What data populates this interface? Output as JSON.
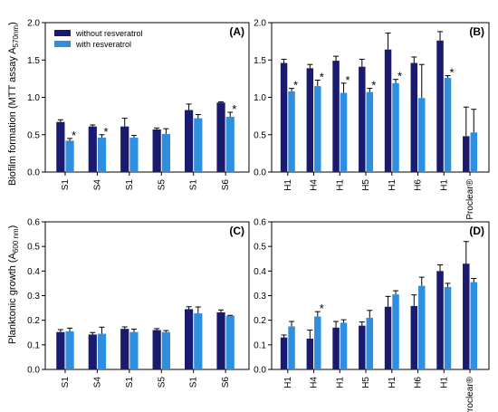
{
  "colors": {
    "without": "#1a1a6e",
    "with": "#2e8fe0",
    "axis": "#000000"
  },
  "legend": {
    "without": "without resveratrol",
    "with": "with resveratrol"
  },
  "ylabels": {
    "top_prefix": "Biofilm formation (MTT assay A",
    "top_sub": "570nm",
    "bottom_prefix": "Planktonic growth (A",
    "bottom_sub": "600 nm"
  },
  "chart_data": [
    {
      "type": "bar",
      "panel": "A",
      "categories": [
        "S1",
        "S4",
        "S1",
        "S5",
        "S1",
        "S6"
      ],
      "ylim": [
        0,
        2.0
      ],
      "yticks": [
        "0.0",
        "0.5",
        "1.0",
        "1.5",
        "2.0"
      ],
      "legend_position": "top-left",
      "series": [
        {
          "name": "without resveratrol",
          "values": [
            0.67,
            0.61,
            0.61,
            0.57,
            0.83,
            0.93
          ],
          "errors": [
            0.03,
            0.02,
            0.11,
            0.02,
            0.08,
            0.01
          ]
        },
        {
          "name": "with resveratrol",
          "values": [
            0.42,
            0.46,
            0.46,
            0.51,
            0.72,
            0.74
          ],
          "errors": [
            0.03,
            0.04,
            0.03,
            0.07,
            0.05,
            0.06
          ]
        }
      ],
      "stars": [
        1,
        1,
        0,
        0,
        0,
        1
      ]
    },
    {
      "type": "bar",
      "panel": "B",
      "categories": [
        "H1",
        "H4",
        "H1",
        "H5",
        "H1",
        "H6",
        "H1",
        "Proclear®"
      ],
      "ylim": [
        0,
        2.0
      ],
      "yticks": [
        "0.0",
        "0.5",
        "1.0",
        "1.5",
        "2.0"
      ],
      "series": [
        {
          "name": "without resveratrol",
          "values": [
            1.46,
            1.39,
            1.49,
            1.41,
            1.64,
            1.46,
            1.76,
            0.48
          ],
          "errors": [
            0.05,
            0.05,
            0.06,
            0.1,
            0.22,
            0.08,
            0.12,
            0.39
          ]
        },
        {
          "name": "with resveratrol",
          "values": [
            1.08,
            1.15,
            1.06,
            1.07,
            1.19,
            0.99,
            1.26,
            0.53
          ],
          "errors": [
            0.04,
            0.08,
            0.13,
            0.05,
            0.05,
            0.45,
            0.03,
            0.31
          ]
        }
      ],
      "stars": [
        1,
        1,
        1,
        1,
        1,
        0,
        1,
        0
      ]
    },
    {
      "type": "bar",
      "panel": "C",
      "categories": [
        "S1",
        "S4",
        "S1",
        "S5",
        "S1",
        "S6"
      ],
      "ylim": [
        0,
        0.6
      ],
      "yticks": [
        "0.0",
        "0.1",
        "0.2",
        "0.3",
        "0.4",
        "0.5",
        "0.6"
      ],
      "series": [
        {
          "name": "without resveratrol",
          "values": [
            0.152,
            0.142,
            0.165,
            0.16,
            0.245,
            0.232
          ],
          "errors": [
            0.01,
            0.008,
            0.008,
            0.006,
            0.01,
            0.01
          ]
        },
        {
          "name": "with resveratrol",
          "values": [
            0.155,
            0.145,
            0.152,
            0.152,
            0.228,
            0.218
          ],
          "errors": [
            0.013,
            0.027,
            0.012,
            0.006,
            0.026,
            0.002
          ]
        }
      ],
      "stars": [
        0,
        0,
        0,
        0,
        0,
        0
      ]
    },
    {
      "type": "bar",
      "panel": "D",
      "categories": [
        "H1",
        "H4",
        "H1",
        "H5",
        "H1",
        "H6",
        "H1",
        "Proclear®"
      ],
      "ylim": [
        0,
        0.6
      ],
      "yticks": [
        "0.0",
        "0.1",
        "0.2",
        "0.3",
        "0.4",
        "0.5",
        "0.6"
      ],
      "series": [
        {
          "name": "without resveratrol",
          "values": [
            0.13,
            0.125,
            0.17,
            0.178,
            0.255,
            0.258,
            0.4,
            0.43
          ],
          "errors": [
            0.01,
            0.035,
            0.025,
            0.015,
            0.042,
            0.045,
            0.025,
            0.09
          ]
        },
        {
          "name": "with resveratrol",
          "values": [
            0.175,
            0.215,
            0.19,
            0.21,
            0.305,
            0.34,
            0.335,
            0.355
          ],
          "errors": [
            0.02,
            0.02,
            0.012,
            0.03,
            0.015,
            0.035,
            0.015,
            0.015
          ]
        }
      ],
      "stars": [
        0,
        1,
        0,
        0,
        0,
        0,
        0,
        0
      ]
    }
  ]
}
